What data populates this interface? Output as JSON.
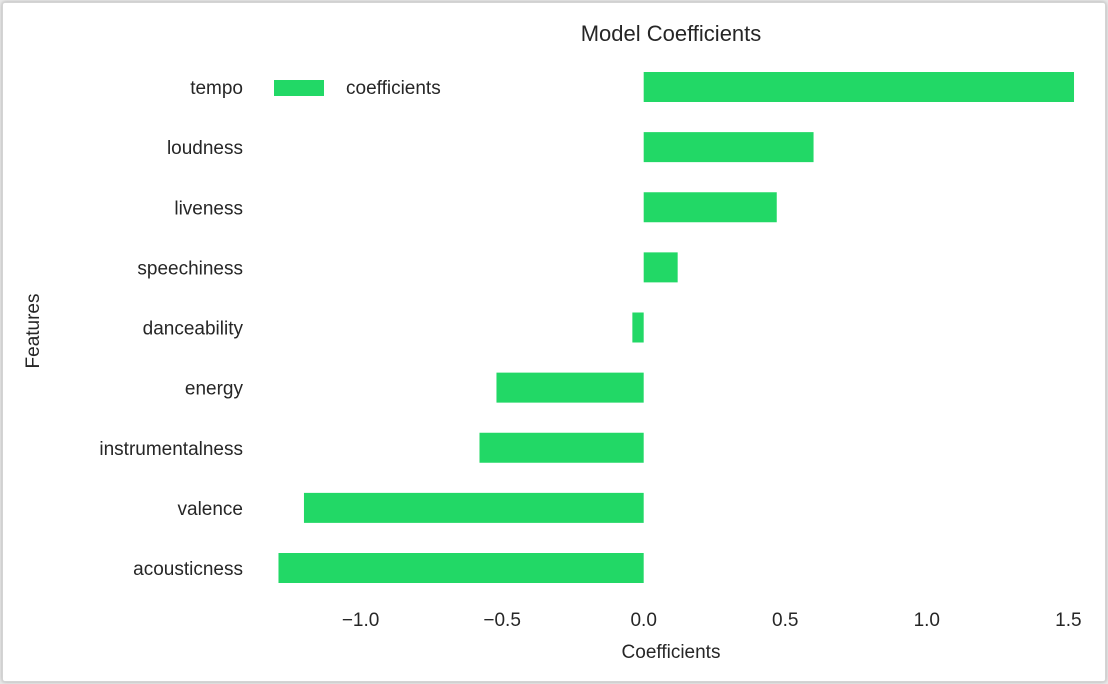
{
  "chart_data": {
    "type": "bar",
    "orientation": "horizontal",
    "title": "Model Coefficients",
    "xlabel": "Coefficients",
    "ylabel": "Features",
    "categories": [
      "tempo",
      "loudness",
      "liveness",
      "speechiness",
      "danceability",
      "energy",
      "instrumentalness",
      "valence",
      "acousticness"
    ],
    "series": [
      {
        "name": "coefficients",
        "values": [
          1.52,
          0.6,
          0.47,
          0.12,
          -0.04,
          -0.52,
          -0.58,
          -1.2,
          -1.29
        ],
        "color": "#22d866"
      }
    ],
    "xticks": [
      -1.0,
      -0.5,
      0.0,
      0.5,
      1.0,
      1.5
    ],
    "xtick_labels": [
      "−1.0",
      "−0.5",
      "0.0",
      "0.5",
      "1.0",
      "1.5"
    ],
    "xlim": [
      -1.38,
      1.58
    ],
    "grid": false,
    "legend": "top-left"
  }
}
